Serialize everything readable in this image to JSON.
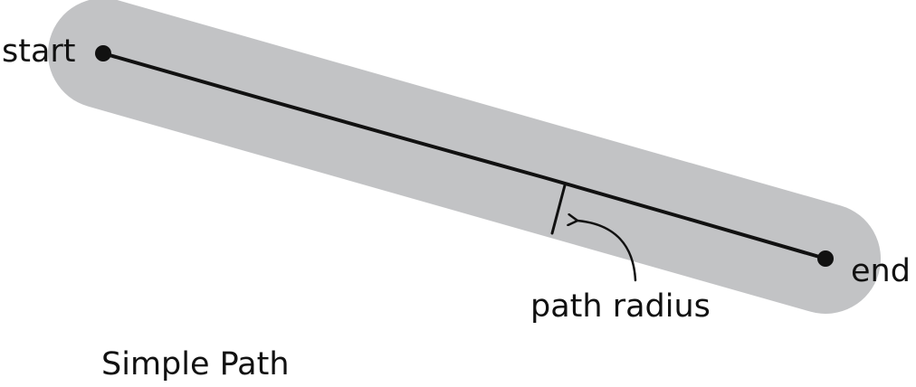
{
  "diagram": {
    "labels": {
      "start": "start",
      "end": "end",
      "radius": "path radius",
      "caption": "Simple Path"
    },
    "colors": {
      "path_band": "#c2c3c5",
      "line": "#111111",
      "background": "#ffffff"
    }
  }
}
